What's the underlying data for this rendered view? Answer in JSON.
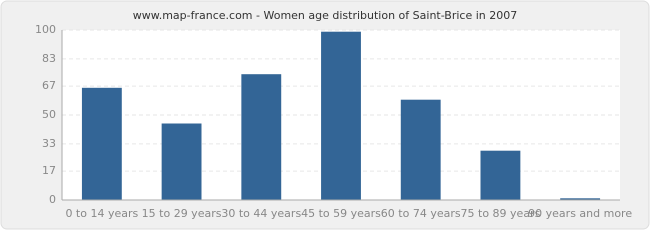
{
  "chart_data": {
    "type": "bar",
    "title": "www.map-france.com - Women age distribution of Saint-Brice in 2007",
    "categories": [
      "0 to 14 years",
      "15 to 29 years",
      "30 to 44 years",
      "45 to 59 years",
      "60 to 74 years",
      "75 to 89 years",
      "90 years and more"
    ],
    "values": [
      66,
      45,
      74,
      99,
      59,
      29,
      1
    ],
    "color": "#336596",
    "ylim": [
      0,
      100
    ],
    "yticks": [
      0,
      17,
      33,
      50,
      67,
      83,
      100
    ],
    "grid": true
  }
}
